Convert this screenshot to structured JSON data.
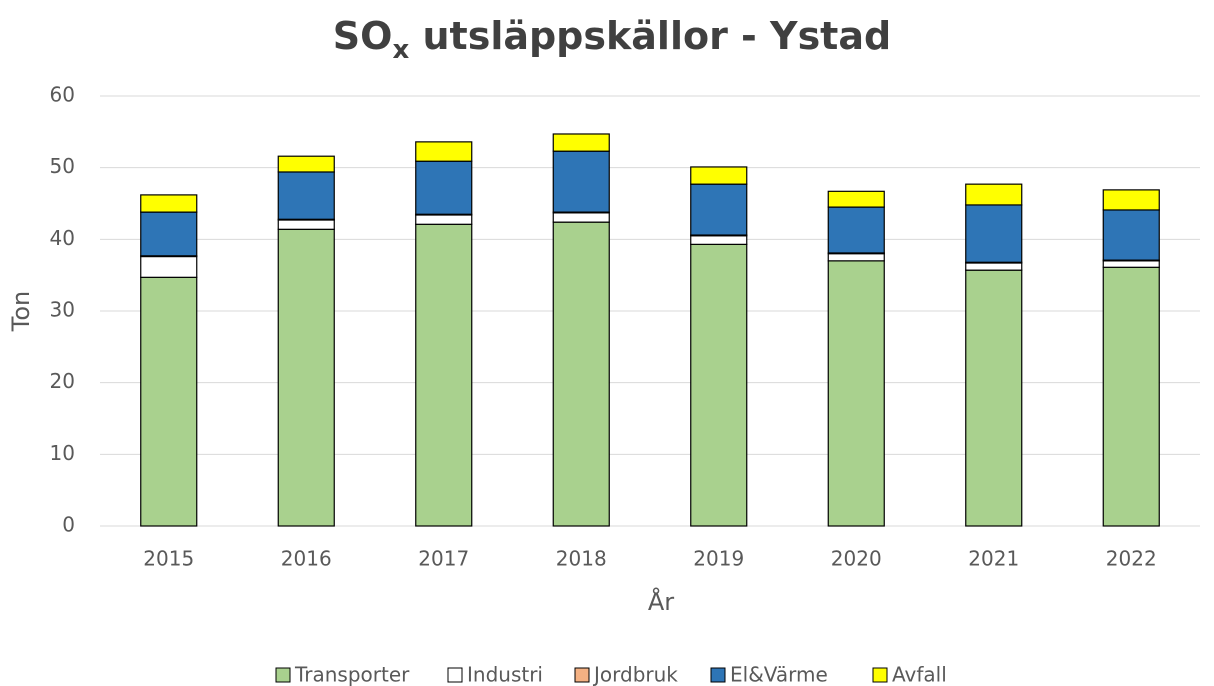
{
  "chart_data": {
    "type": "stacked_bar",
    "title": [
      "SO",
      "x",
      " utsläppskällor - Ystad"
    ],
    "x_label": "År",
    "y_label": "Ton",
    "categories": [
      "2015",
      "2016",
      "2017",
      "2018",
      "2019",
      "2020",
      "2021",
      "2022"
    ],
    "series": [
      {
        "name": "Transporter",
        "color": "#a9d18e",
        "values": [
          34.7,
          41.4,
          42.1,
          42.4,
          39.3,
          37.0,
          35.7,
          36.1
        ]
      },
      {
        "name": "Industri",
        "color": "#ffffff",
        "values": [
          2.9,
          1.3,
          1.3,
          1.3,
          1.2,
          1.0,
          1.0,
          0.9
        ]
      },
      {
        "name": "Jordbruk",
        "color": "#f4b183",
        "values": [
          0.1,
          0.1,
          0.1,
          0.1,
          0.1,
          0.1,
          0.1,
          0.1
        ]
      },
      {
        "name": "El&Värme",
        "color": "#2e75b6",
        "values": [
          6.1,
          6.6,
          7.4,
          8.5,
          7.1,
          6.4,
          8.0,
          7.0
        ]
      },
      {
        "name": "Avfall",
        "color": "#ffff00",
        "values": [
          2.4,
          2.2,
          2.7,
          2.4,
          2.4,
          2.2,
          2.9,
          2.8
        ]
      }
    ],
    "ylim": [
      0,
      60
    ],
    "yticks": [
      0,
      10,
      20,
      30,
      40,
      50,
      60
    ],
    "grid": true,
    "legend": "bottom"
  }
}
